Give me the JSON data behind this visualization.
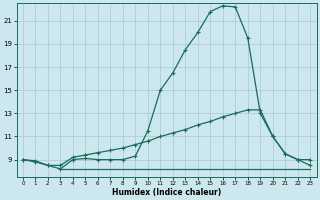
{
  "xlabel": "Humidex (Indice chaleur)",
  "bg_color": "#cce8ee",
  "grid_color": "#aac8d0",
  "line_color": "#1a6b5a",
  "xlim": [
    -0.5,
    23.5
  ],
  "ylim": [
    7.5,
    22.5
  ],
  "yticks": [
    9,
    11,
    13,
    15,
    17,
    19,
    21
  ],
  "xticks": [
    0,
    1,
    2,
    3,
    4,
    5,
    6,
    7,
    8,
    9,
    10,
    11,
    12,
    13,
    14,
    15,
    16,
    17,
    18,
    19,
    20,
    21,
    22,
    23
  ],
  "line1_x": [
    0,
    1,
    2,
    3,
    4,
    5,
    6,
    7,
    8,
    9,
    10,
    11,
    12,
    13,
    14,
    15,
    16,
    17,
    18,
    19,
    20,
    21,
    22,
    23
  ],
  "line1_y": [
    9.0,
    8.8,
    8.5,
    8.2,
    9.0,
    9.1,
    9.0,
    9.0,
    9.0,
    9.3,
    11.5,
    15.0,
    16.5,
    18.5,
    20.0,
    21.8,
    22.3,
    22.2,
    19.5,
    13.0,
    11.0,
    9.5,
    9.0,
    9.0
  ],
  "line2_x": [
    0,
    1,
    2,
    3,
    4,
    5,
    6,
    7,
    8,
    9,
    10,
    11,
    12,
    13,
    14,
    15,
    16,
    17,
    18,
    19,
    20,
    21,
    22,
    23
  ],
  "line2_y": [
    9.0,
    8.9,
    8.5,
    8.5,
    9.2,
    9.4,
    9.6,
    9.8,
    10.0,
    10.3,
    10.6,
    11.0,
    11.3,
    11.6,
    12.0,
    12.3,
    12.7,
    13.0,
    13.3,
    13.3,
    11.0,
    9.5,
    9.0,
    8.5
  ],
  "line3_x": [
    3,
    4,
    5,
    6,
    7,
    8,
    9,
    10,
    11,
    12,
    13,
    14,
    15,
    16,
    17,
    18,
    19,
    20,
    21,
    22,
    23
  ],
  "line3_y": [
    8.2,
    8.2,
    8.2,
    8.2,
    8.2,
    8.2,
    8.2,
    8.2,
    8.2,
    8.2,
    8.2,
    8.2,
    8.2,
    8.2,
    8.2,
    8.2,
    8.2,
    8.2,
    8.2,
    8.2,
    8.2
  ]
}
